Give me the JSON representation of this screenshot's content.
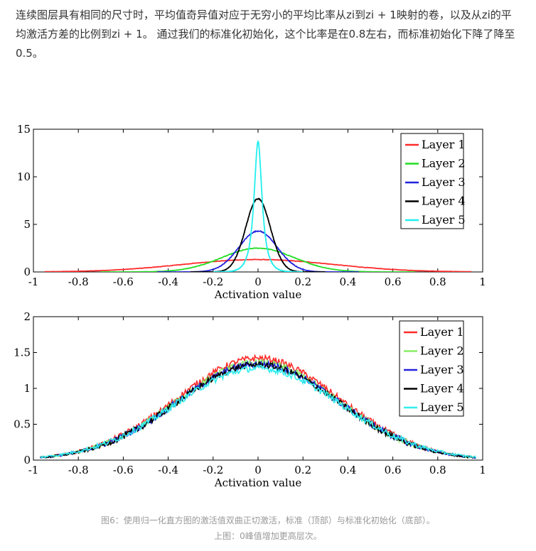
{
  "article": {
    "paragraph": "连续图层具有相同的尺寸时，平均值奇异值对应于无穷小的平均比率从zi到zi + 1映射的卷，以及从zi的平均激活方差的比例到zi + 1。 通过我们的标准化初始化，这个比率是在0.8左右，而标准初始化下降了降至0.5。"
  },
  "figure": {
    "caption_line1": "图6：使用归一化直方图的激活值双曲正切激活，标准（顶部）与标准化初始化（底部）。",
    "caption_line2": "上图：0峰值增加更高层次。"
  },
  "chart_data": [
    {
      "type": "line",
      "title": "",
      "xlabel": "Activation value",
      "ylabel": "",
      "xlim": [
        -1,
        1
      ],
      "ylim": [
        0,
        15
      ],
      "x_ticks": [
        "-1",
        "-0.8",
        "-0.6",
        "-0.4",
        "-0.2",
        "0",
        "0.2",
        "0.4",
        "0.6",
        "0.8",
        "1"
      ],
      "y_ticks": [
        "0",
        "5",
        "10",
        "15"
      ],
      "legend_position": "top-right",
      "series": [
        {
          "name": "Layer 1",
          "color": "#ff2a2a",
          "peak": 1.3,
          "spread": 0.45,
          "shape": "wide",
          "extent": 0.95
        },
        {
          "name": "Layer 2",
          "color": "#22dd22",
          "peak": 2.5,
          "spread": 0.16,
          "shape": "gauss",
          "extent": 0.7
        },
        {
          "name": "Layer 3",
          "color": "#2222dd",
          "peak": 4.3,
          "spread": 0.085,
          "shape": "gauss",
          "extent": 0.45
        },
        {
          "name": "Layer 4",
          "color": "#000000",
          "peak": 7.7,
          "spread": 0.055,
          "shape": "gauss",
          "extent": 0.3
        },
        {
          "name": "Layer 5",
          "color": "#22eeee",
          "peak": 13.7,
          "spread": 0.022,
          "shape": "lorentz",
          "extent": 0.2
        }
      ]
    },
    {
      "type": "line",
      "title": "",
      "xlabel": "Activation value",
      "ylabel": "",
      "xlim": [
        -1,
        1
      ],
      "ylim": [
        0,
        2
      ],
      "x_ticks": [
        "-1",
        "-0.8",
        "-0.6",
        "-0.4",
        "-0.2",
        "0",
        "0.2",
        "0.4",
        "0.6",
        "0.8",
        "1"
      ],
      "y_ticks": [
        "0",
        "0.5",
        "1",
        "1.5",
        "2"
      ],
      "legend_position": "top-right",
      "series": [
        {
          "name": "Layer 1",
          "color": "#ff2a2a",
          "peak": 1.42,
          "spread": 0.36,
          "shape": "gauss",
          "extent": 0.97
        },
        {
          "name": "Layer 2",
          "color": "#88ee66",
          "peak": 1.36,
          "spread": 0.36,
          "shape": "gauss",
          "extent": 0.97
        },
        {
          "name": "Layer 3",
          "color": "#2222dd",
          "peak": 1.34,
          "spread": 0.36,
          "shape": "gauss",
          "extent": 0.97
        },
        {
          "name": "Layer 4",
          "color": "#000000",
          "peak": 1.33,
          "spread": 0.36,
          "shape": "gauss",
          "extent": 0.97
        },
        {
          "name": "Layer 5",
          "color": "#33eeee",
          "peak": 1.28,
          "spread": 0.37,
          "shape": "gauss",
          "extent": 0.97
        }
      ]
    }
  ]
}
